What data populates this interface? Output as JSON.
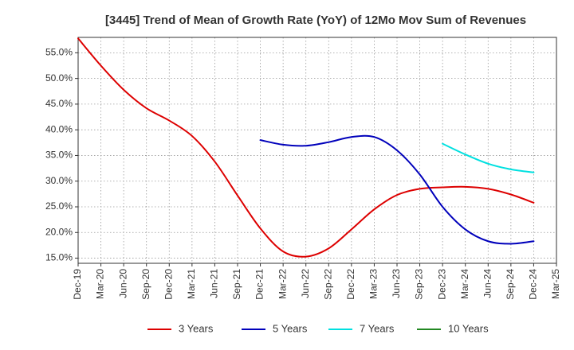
{
  "chart_data": {
    "type": "line",
    "title": "[3445]  Trend of Mean of Growth Rate (YoY) of 12Mo Mov Sum of Revenues",
    "xlabel": "",
    "ylabel": "",
    "ylim": [
      14.0,
      58.0
    ],
    "y_ticks": [
      15.0,
      20.0,
      25.0,
      30.0,
      35.0,
      40.0,
      45.0,
      50.0,
      55.0
    ],
    "y_tick_labels": [
      "15.0%",
      "20.0%",
      "25.0%",
      "30.0%",
      "35.0%",
      "40.0%",
      "45.0%",
      "50.0%",
      "55.0%"
    ],
    "categories": [
      "Dec-19",
      "Mar-20",
      "Jun-20",
      "Sep-20",
      "Dec-20",
      "Mar-21",
      "Jun-21",
      "Sep-21",
      "Dec-21",
      "Mar-22",
      "Jun-22",
      "Sep-22",
      "Dec-22",
      "Mar-23",
      "Jun-23",
      "Sep-23",
      "Dec-23",
      "Mar-24",
      "Jun-24",
      "Sep-24",
      "Dec-24",
      "Mar-25"
    ],
    "grid": true,
    "legend_position": "bottom",
    "series": [
      {
        "name": "3 Years",
        "color": "#dd0000",
        "points": [
          [
            0,
            57.8
          ],
          [
            1,
            52.5
          ],
          [
            2,
            47.8
          ],
          [
            3,
            44.2
          ],
          [
            4,
            41.8
          ],
          [
            5,
            38.8
          ],
          [
            6,
            33.8
          ],
          [
            7,
            27.2
          ],
          [
            8,
            20.8
          ],
          [
            9,
            16.3
          ],
          [
            10,
            15.3
          ],
          [
            11,
            16.9
          ],
          [
            12,
            20.6
          ],
          [
            13,
            24.5
          ],
          [
            14,
            27.3
          ],
          [
            15,
            28.5
          ],
          [
            16,
            28.8
          ],
          [
            17,
            28.9
          ],
          [
            18,
            28.5
          ],
          [
            19,
            27.4
          ],
          [
            20,
            25.8
          ]
        ]
      },
      {
        "name": "5 Years",
        "color": "#0000bb",
        "points": [
          [
            8,
            38.0
          ],
          [
            9,
            37.1
          ],
          [
            10,
            36.9
          ],
          [
            11,
            37.6
          ],
          [
            12,
            38.6
          ],
          [
            13,
            38.6
          ],
          [
            14,
            36.0
          ],
          [
            15,
            31.3
          ],
          [
            16,
            25.0
          ],
          [
            17,
            20.6
          ],
          [
            18,
            18.3
          ],
          [
            19,
            17.8
          ],
          [
            20,
            18.3
          ]
        ]
      },
      {
        "name": "7 Years",
        "color": "#00e0e0",
        "points": [
          [
            16,
            37.3
          ],
          [
            17,
            35.2
          ],
          [
            18,
            33.4
          ],
          [
            19,
            32.3
          ],
          [
            20,
            31.7
          ]
        ]
      },
      {
        "name": "10 Years",
        "color": "#228822",
        "points": []
      }
    ]
  }
}
